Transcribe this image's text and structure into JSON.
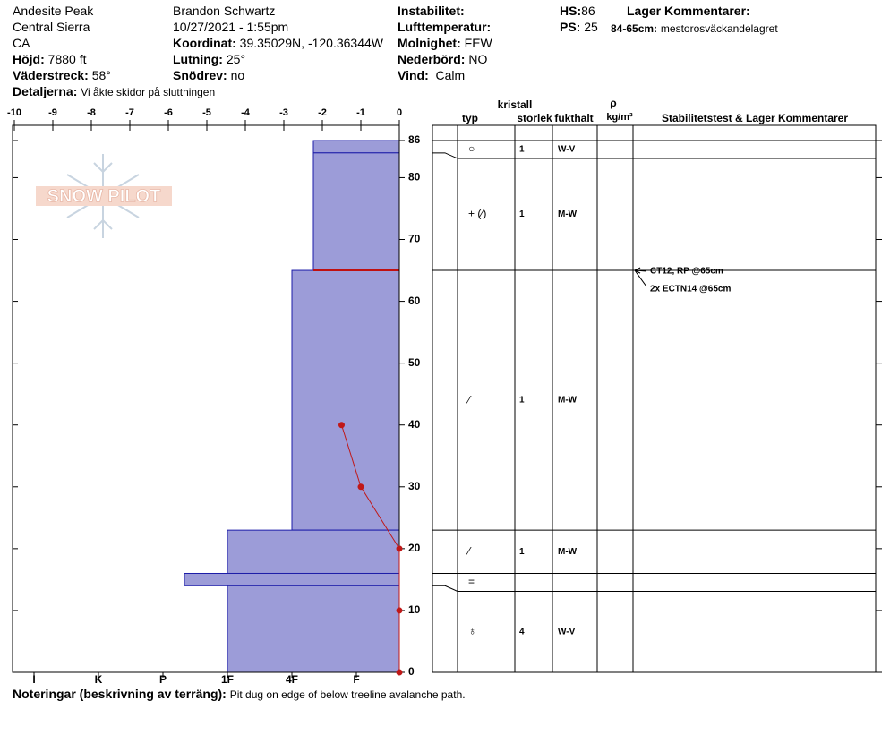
{
  "header": {
    "location": [
      "Andesite Peak",
      "Central Sierra",
      "CA"
    ],
    "elevation": {
      "label": "Höjd:",
      "value": "7880 ft"
    },
    "aspect": {
      "label": "Väderstreck:",
      "value": "58°"
    },
    "details": {
      "label": "Detaljerna:",
      "value": "Vi åkte skidor på sluttningen"
    },
    "observer": "Brandon Schwartz",
    "datetime": "10/27/2021 - 1:55pm",
    "coordinates": {
      "label": "Koordinat:",
      "value": "39.35029N, -120.36344W"
    },
    "slope": {
      "label": "Lutning:",
      "value": "25°"
    },
    "wind_loading": {
      "label": "Snödrev:",
      "value": "no"
    },
    "instability": {
      "label": "Instabilitet:"
    },
    "air_temp": {
      "label": "Lufttemperatur:"
    },
    "sky": {
      "label": "Molnighet:",
      "value": "FEW"
    },
    "precip": {
      "label": "Nederbörd:",
      "value": "NO"
    },
    "wind": {
      "label": "Vind:",
      "value": "Calm"
    },
    "hs": {
      "label": "HS:",
      "value": "86"
    },
    "ps": {
      "label": "PS:",
      "value": "25"
    },
    "layer_comments": {
      "label": "Lager Kommentarer:"
    },
    "layer_note": {
      "label": "84-65cm:",
      "value": "mestorosväckandelagret"
    }
  },
  "logo": "SNOW PILOT",
  "chart_data": {
    "type": "snowpit",
    "xlim": [
      -10,
      0
    ],
    "xticks": [
      -10,
      -9,
      -8,
      -7,
      -6,
      -5,
      -4,
      -3,
      -2,
      -1,
      0
    ],
    "ylim": [
      0,
      86
    ],
    "yticks": [
      0,
      10,
      20,
      30,
      40,
      50,
      60,
      70,
      80,
      86
    ],
    "hardness_lim": [
      0,
      18
    ],
    "hardness_ticks": [
      {
        "value": 17,
        "label": "I"
      },
      {
        "value": 14,
        "label": "K"
      },
      {
        "value": 11,
        "label": "P"
      },
      {
        "value": 8,
        "label": "1F"
      },
      {
        "value": 5,
        "label": "4F"
      },
      {
        "value": 2,
        "label": "F"
      }
    ],
    "layer_color": "#9c9cd8",
    "layer_edge": "#1c1ca8",
    "layers": [
      {
        "top": 86,
        "bottom": 84,
        "hardness": 4
      },
      {
        "top": 84,
        "bottom": 65,
        "hardness": 4
      },
      {
        "top": 65,
        "bottom": 23,
        "hardness": 5
      },
      {
        "top": 23,
        "bottom": 16,
        "hardness": 8
      },
      {
        "top": 16,
        "bottom": 14,
        "hardness": 10
      },
      {
        "top": 14,
        "bottom": 0,
        "hardness": 8
      }
    ],
    "concern_depth": 65,
    "concern_color": "#c01010",
    "temperature": {
      "color": "#c01818",
      "depth": [
        40,
        30,
        20,
        10,
        0
      ],
      "values": [
        -1.5,
        -1,
        0,
        0,
        0
      ]
    }
  },
  "layer_table": {
    "headers": {
      "crystal": "kristall",
      "type": "typ",
      "size": "storlek",
      "moisture": "fukthalt",
      "rho": "ρ",
      "density": "kg/m³",
      "comments": "Stabilitetstest & Lager Kommentarer"
    },
    "rows": [
      {
        "grain": "○",
        "size": "1",
        "moisture": "W-V"
      },
      {
        "grain": "+ (⁄)",
        "size": "1",
        "moisture": "M-W"
      },
      {
        "grain": "⁄",
        "size": "1",
        "moisture": "M-W"
      },
      {
        "grain": "⁄",
        "size": "1",
        "moisture": "M-W"
      },
      {
        "grain": "=",
        "size": null,
        "moisture": null
      },
      {
        "grain": "♁",
        "size": "4",
        "moisture": "W-V"
      }
    ]
  },
  "stability_tests": [
    {
      "text": "CT12, RP @65cm",
      "depth": 65
    },
    {
      "text": "2x ECTN14 @65cm",
      "depth": 65
    }
  ],
  "notes": {
    "label": "Noteringar (beskrivning av terräng):",
    "value": "Pit dug on edge of below treeline avalanche path."
  }
}
